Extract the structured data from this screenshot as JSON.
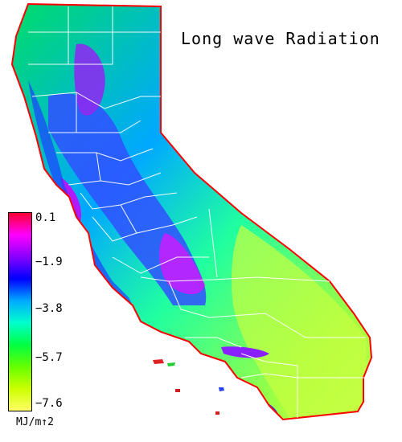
{
  "title": "Long wave Radiation",
  "colorbar": {
    "ticks": [
      "0.1",
      "−1.9",
      "−3.8",
      "−5.7",
      "−7.6"
    ],
    "units": "MJ/m↑2",
    "range": [
      -7.6,
      0.1
    ],
    "colors": [
      "#ff0033",
      "#ff00ff",
      "#8800ff",
      "#0000ff",
      "#00aaff",
      "#00ffcc",
      "#00ff44",
      "#66ff00",
      "#ccff00",
      "#ffff66"
    ]
  },
  "map": {
    "region": "California",
    "county_borders_color": "#ffffff",
    "coast_outline_color": "#ff0000"
  }
}
